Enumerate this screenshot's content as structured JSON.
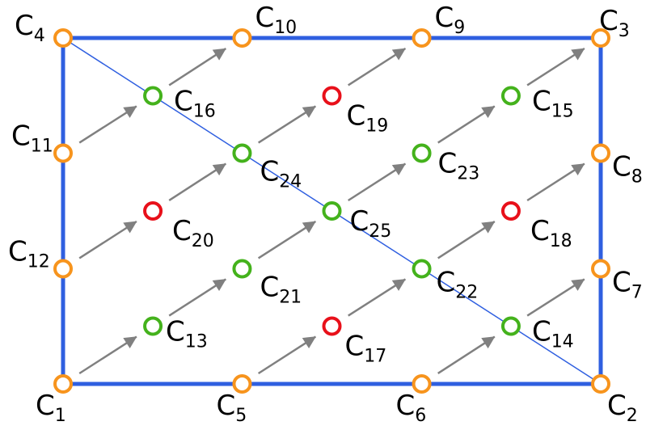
{
  "colors": {
    "frame": "#2f5fe0",
    "diagonal": "#2f5fe0",
    "arrow": "#808080",
    "boundary_node": "#f7941d",
    "interior_node": "#44b21c",
    "highlight_node": "#e8101a"
  },
  "nodes": [
    {
      "id": "C1",
      "base": "C",
      "sub": "1",
      "kind": "boundary",
      "u": 0,
      "v": 0
    },
    {
      "id": "C2",
      "base": "C",
      "sub": "2",
      "kind": "boundary",
      "u": 1,
      "v": 0
    },
    {
      "id": "C3",
      "base": "C",
      "sub": "3",
      "kind": "boundary",
      "u": 1,
      "v": 1
    },
    {
      "id": "C4",
      "base": "C",
      "sub": "4",
      "kind": "boundary",
      "u": 0,
      "v": 1
    },
    {
      "id": "C5",
      "base": "C",
      "sub": "5",
      "kind": "boundary",
      "u": 0.333,
      "v": 0
    },
    {
      "id": "C6",
      "base": "C",
      "sub": "6",
      "kind": "boundary",
      "u": 0.667,
      "v": 0
    },
    {
      "id": "C7",
      "base": "C",
      "sub": "7",
      "kind": "boundary",
      "u": 1,
      "v": 0.333
    },
    {
      "id": "C8",
      "base": "C",
      "sub": "8",
      "kind": "boundary",
      "u": 1,
      "v": 0.667
    },
    {
      "id": "C9",
      "base": "C",
      "sub": "9",
      "kind": "boundary",
      "u": 0.667,
      "v": 1
    },
    {
      "id": "C10",
      "base": "C",
      "sub": "10",
      "kind": "boundary",
      "u": 0.333,
      "v": 1
    },
    {
      "id": "C11",
      "base": "C",
      "sub": "11",
      "kind": "boundary",
      "u": 0,
      "v": 0.667
    },
    {
      "id": "C12",
      "base": "C",
      "sub": "12",
      "kind": "boundary",
      "u": 0,
      "v": 0.333
    },
    {
      "id": "C13",
      "base": "C",
      "sub": "13",
      "kind": "interior",
      "u": 0.167,
      "v": 0.167
    },
    {
      "id": "C14",
      "base": "C",
      "sub": "14",
      "kind": "interior",
      "u": 0.833,
      "v": 0.167
    },
    {
      "id": "C15",
      "base": "C",
      "sub": "15",
      "kind": "interior",
      "u": 0.833,
      "v": 0.833
    },
    {
      "id": "C16",
      "base": "C",
      "sub": "16",
      "kind": "interior",
      "u": 0.167,
      "v": 0.833
    },
    {
      "id": "C17",
      "base": "C",
      "sub": "17",
      "kind": "highlight",
      "u": 0.5,
      "v": 0.167
    },
    {
      "id": "C18",
      "base": "C",
      "sub": "18",
      "kind": "highlight",
      "u": 0.833,
      "v": 0.5
    },
    {
      "id": "C19",
      "base": "C",
      "sub": "19",
      "kind": "highlight",
      "u": 0.5,
      "v": 0.833
    },
    {
      "id": "C20",
      "base": "C",
      "sub": "20",
      "kind": "highlight",
      "u": 0.167,
      "v": 0.5
    },
    {
      "id": "C21",
      "base": "C",
      "sub": "21",
      "kind": "interior",
      "u": 0.333,
      "v": 0.333
    },
    {
      "id": "C22",
      "base": "C",
      "sub": "22",
      "kind": "interior",
      "u": 0.667,
      "v": 0.333
    },
    {
      "id": "C23",
      "base": "C",
      "sub": "23",
      "kind": "interior",
      "u": 0.667,
      "v": 0.667
    },
    {
      "id": "C24",
      "base": "C",
      "sub": "24",
      "kind": "interior",
      "u": 0.333,
      "v": 0.667
    },
    {
      "id": "C25",
      "base": "C",
      "sub": "25",
      "kind": "interior",
      "u": 0.5,
      "v": 0.5
    }
  ],
  "arrows": [
    {
      "from": "C1",
      "to": "C13"
    },
    {
      "from": "C13",
      "to": "C21"
    },
    {
      "from": "C21",
      "to": "C25"
    },
    {
      "from": "C25",
      "to": "C23"
    },
    {
      "from": "C23",
      "to": "C15"
    },
    {
      "from": "C15",
      "to": "C3"
    },
    {
      "from": "C12",
      "to": "C20"
    },
    {
      "from": "C20",
      "to": "C24"
    },
    {
      "from": "C24",
      "to": "C19"
    },
    {
      "from": "C19",
      "to": "C9"
    },
    {
      "from": "C11",
      "to": "C16"
    },
    {
      "from": "C16",
      "to": "C10"
    },
    {
      "from": "C5",
      "to": "C17"
    },
    {
      "from": "C17",
      "to": "C22"
    },
    {
      "from": "C22",
      "to": "C18"
    },
    {
      "from": "C18",
      "to": "C8"
    },
    {
      "from": "C6",
      "to": "C14"
    },
    {
      "from": "C14",
      "to": "C7"
    }
  ]
}
